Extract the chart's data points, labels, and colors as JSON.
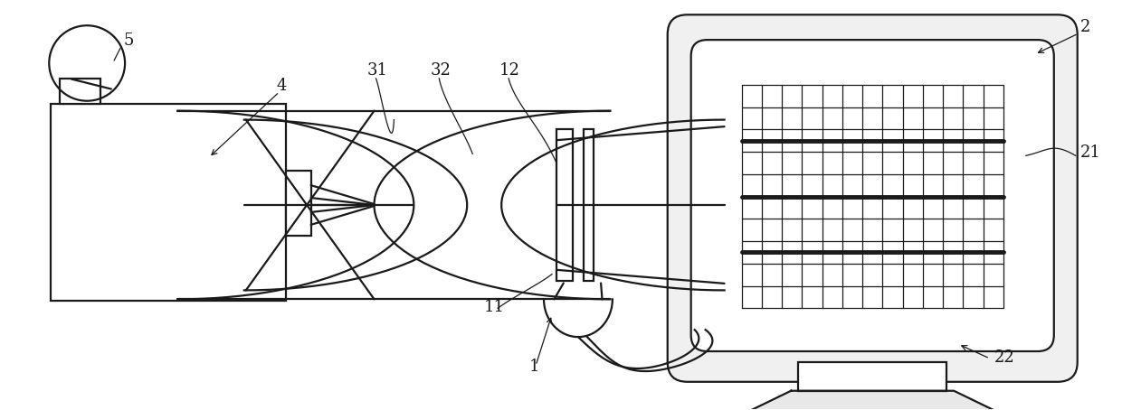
{
  "bg_color": "#ffffff",
  "lc": "#1a1a1a",
  "lw": 1.6,
  "figsize": [
    12.4,
    4.54
  ],
  "dpi": 100,
  "xlim": [
    0,
    12.4
  ],
  "ylim": [
    0,
    4.54
  ]
}
